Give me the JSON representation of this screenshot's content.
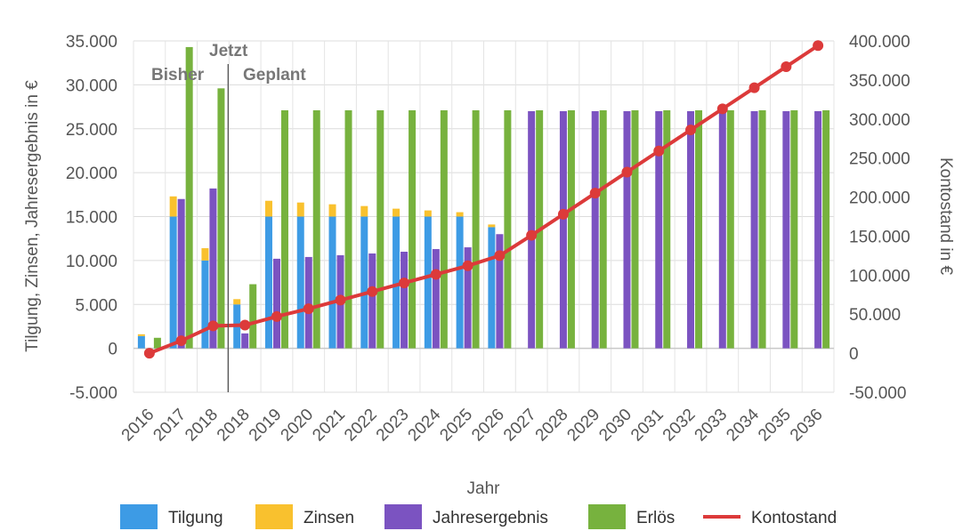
{
  "chart_data": {
    "type": "bar",
    "categories": [
      "2016",
      "2017",
      "2018",
      "2018",
      "2019",
      "2020",
      "2021",
      "2022",
      "2023",
      "2024",
      "2025",
      "2026",
      "2027",
      "2028",
      "2029",
      "2030",
      "2031",
      "2032",
      "2033",
      "2034",
      "2035",
      "2036"
    ],
    "series": [
      {
        "name": "Tilgung",
        "type": "bar",
        "axis": "left",
        "stack": "a",
        "values": [
          1400,
          15000,
          10000,
          5000,
          15000,
          15000,
          15000,
          15000,
          15000,
          15000,
          15000,
          13800,
          0,
          0,
          0,
          0,
          0,
          0,
          0,
          0,
          0,
          0
        ]
      },
      {
        "name": "Zinsen",
        "type": "bar",
        "axis": "left",
        "stack": "a",
        "values": [
          200,
          2300,
          1400,
          600,
          1800,
          1600,
          1400,
          1200,
          900,
          700,
          500,
          300,
          0,
          0,
          0,
          0,
          0,
          0,
          0,
          0,
          0,
          0
        ]
      },
      {
        "name": "Jahresergebnis",
        "type": "bar",
        "axis": "left",
        "values": [
          0,
          17000,
          18200,
          1700,
          10200,
          10400,
          10600,
          10800,
          11000,
          11300,
          11500,
          13000,
          27000,
          27000,
          27000,
          27000,
          27000,
          27000,
          27000,
          27000,
          27000,
          27000
        ]
      },
      {
        "name": "Erlös",
        "type": "bar",
        "axis": "left",
        "values": [
          1200,
          34300,
          29600,
          7300,
          27100,
          27100,
          27100,
          27100,
          27100,
          27100,
          27100,
          27100,
          27100,
          27100,
          27100,
          27100,
          27100,
          27100,
          27100,
          27100,
          27100,
          27100
        ]
      },
      {
        "name": "Kontostand",
        "type": "line",
        "axis": "right",
        "values": [
          0,
          16000,
          35000,
          36000,
          47000,
          57000,
          68000,
          79000,
          90000,
          101000,
          112000,
          125000,
          151000,
          178000,
          205000,
          232000,
          259000,
          286000,
          313000,
          340000,
          367000,
          394000
        ]
      }
    ],
    "xlabel": "Jahr",
    "ylabel_left": "Tilgung, Zinsen, Jahresergebnis in €",
    "ylabel_right": "Kontostand in €",
    "ylim_left": [
      -5000,
      35000
    ],
    "ylim_right": [
      -50000,
      400000
    ],
    "yticks_left": [
      "-5.000",
      "0",
      "5.000",
      "10.000",
      "15.000",
      "20.000",
      "25.000",
      "30.000",
      "35.000"
    ],
    "yticks_right": [
      "-50.000",
      "0",
      "50.000",
      "100.000",
      "150.000",
      "200.000",
      "250.000",
      "300.000",
      "350.000",
      "400.000"
    ],
    "annotations": {
      "left_label": "Bisher",
      "now_label": "Jetzt",
      "right_label": "Geplant"
    },
    "grid": true,
    "legend": "bottom",
    "colors": {
      "Tilgung": "#3d9be5",
      "Zinsen": "#f9c12e",
      "Jahresergebnis": "#7b53c1",
      "Erlös": "#77b23e",
      "Kontostand": "#dc3a3a"
    }
  }
}
